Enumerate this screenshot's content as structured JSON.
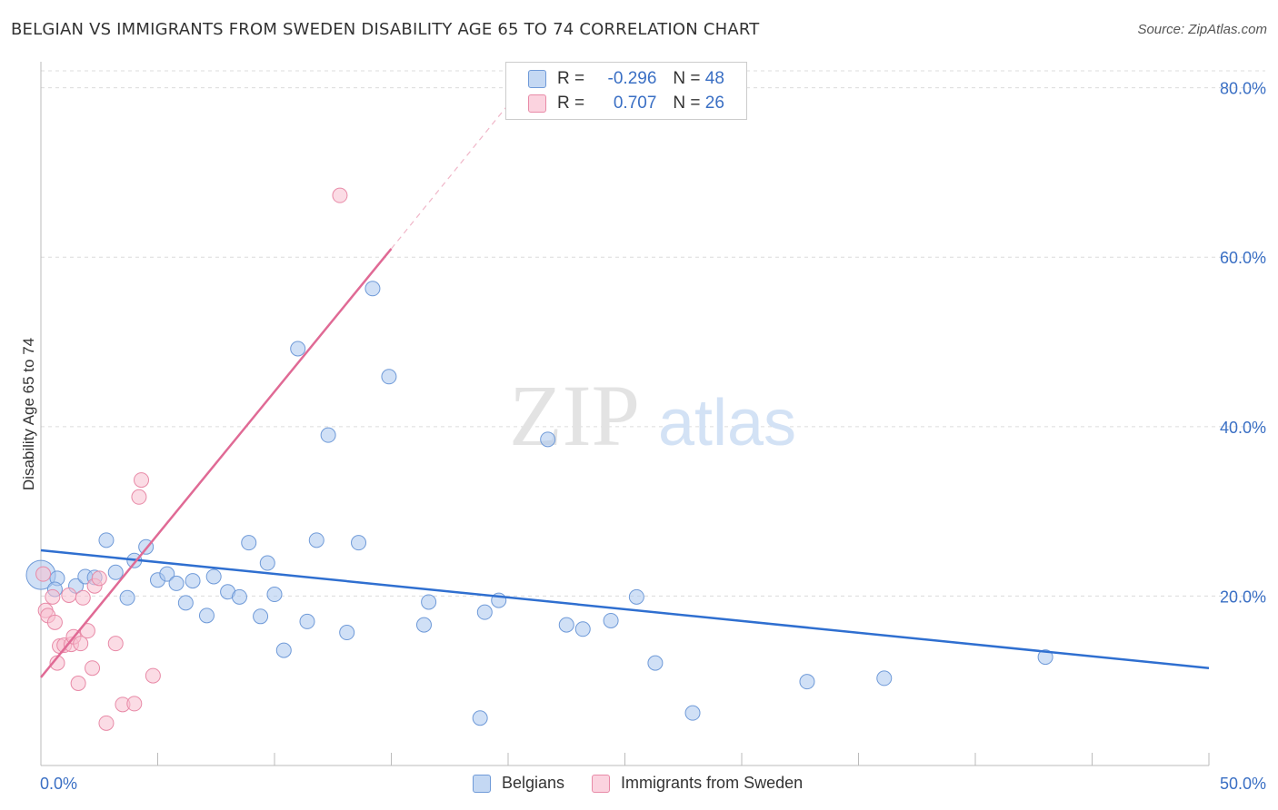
{
  "title": "BELGIAN VS IMMIGRANTS FROM SWEDEN DISABILITY AGE 65 TO 74 CORRELATION CHART",
  "source": "Source: ZipAtlas.com",
  "watermark": {
    "zip": "ZIP",
    "atlas": "atlas"
  },
  "legend": {
    "r_label": "R =",
    "n_label": "N =",
    "rows": [
      {
        "name": "Belgians",
        "r": "-0.296",
        "n": "48",
        "color": "#a9c7ef",
        "border": "#6f9ad8"
      },
      {
        "name": "Immigrants from Sweden",
        "r": "0.707",
        "n": "26",
        "color": "#f7bfd0",
        "border": "#e88aa7"
      }
    ]
  },
  "chart_data": {
    "type": "scatter",
    "title": "BELGIAN VS IMMIGRANTS FROM SWEDEN DISABILITY AGE 65 TO 74 CORRELATION CHART",
    "xlabel": "",
    "ylabel": "Disability Age 65 to 74",
    "xlim": [
      0,
      50
    ],
    "ylim": [
      0,
      82
    ],
    "x_tick_labels": [
      "0.0%",
      "50.0%"
    ],
    "y_ticks": [
      20,
      40,
      60,
      80
    ],
    "y_tick_labels": [
      "20.0%",
      "40.0%",
      "60.0%",
      "80.0%"
    ],
    "series": [
      {
        "name": "Belgians",
        "color": "#a9c7ef",
        "stroke": "#6f9ad8",
        "line_color": "#2f6fd0",
        "trend": {
          "x": [
            0,
            50
          ],
          "y": [
            25.4,
            11.5
          ]
        },
        "points": [
          {
            "x": 0.0,
            "y": 22.5,
            "big": true
          },
          {
            "x": 0.7,
            "y": 22.1
          },
          {
            "x": 0.6,
            "y": 20.8
          },
          {
            "x": 1.5,
            "y": 21.2
          },
          {
            "x": 1.9,
            "y": 22.3
          },
          {
            "x": 2.3,
            "y": 22.2
          },
          {
            "x": 2.8,
            "y": 26.6
          },
          {
            "x": 3.2,
            "y": 22.8
          },
          {
            "x": 3.7,
            "y": 19.8
          },
          {
            "x": 4.0,
            "y": 24.2
          },
          {
            "x": 4.5,
            "y": 25.8
          },
          {
            "x": 5.0,
            "y": 21.9
          },
          {
            "x": 5.4,
            "y": 22.6
          },
          {
            "x": 5.8,
            "y": 21.5
          },
          {
            "x": 6.2,
            "y": 19.2
          },
          {
            "x": 6.5,
            "y": 21.8
          },
          {
            "x": 7.1,
            "y": 17.7
          },
          {
            "x": 7.4,
            "y": 22.3
          },
          {
            "x": 8.0,
            "y": 20.5
          },
          {
            "x": 8.5,
            "y": 19.9
          },
          {
            "x": 8.9,
            "y": 26.3
          },
          {
            "x": 9.4,
            "y": 17.6
          },
          {
            "x": 9.7,
            "y": 23.9
          },
          {
            "x": 10.0,
            "y": 20.2
          },
          {
            "x": 10.4,
            "y": 13.6
          },
          {
            "x": 11.0,
            "y": 49.2
          },
          {
            "x": 11.4,
            "y": 17.0
          },
          {
            "x": 11.8,
            "y": 26.6
          },
          {
            "x": 12.3,
            "y": 39.0
          },
          {
            "x": 13.1,
            "y": 15.7
          },
          {
            "x": 13.6,
            "y": 26.3
          },
          {
            "x": 14.2,
            "y": 56.3
          },
          {
            "x": 14.9,
            "y": 45.9
          },
          {
            "x": 16.4,
            "y": 16.6
          },
          {
            "x": 16.6,
            "y": 19.3
          },
          {
            "x": 18.8,
            "y": 5.6
          },
          {
            "x": 19.0,
            "y": 18.1
          },
          {
            "x": 19.6,
            "y": 19.5
          },
          {
            "x": 21.7,
            "y": 38.5
          },
          {
            "x": 22.5,
            "y": 16.6
          },
          {
            "x": 23.2,
            "y": 16.1
          },
          {
            "x": 24.4,
            "y": 17.1
          },
          {
            "x": 25.5,
            "y": 19.9
          },
          {
            "x": 26.3,
            "y": 12.1
          },
          {
            "x": 27.9,
            "y": 6.2
          },
          {
            "x": 32.8,
            "y": 9.9
          },
          {
            "x": 36.1,
            "y": 10.3
          },
          {
            "x": 43.0,
            "y": 12.8
          }
        ]
      },
      {
        "name": "Immigrants from Sweden",
        "color": "#f7bfd0",
        "stroke": "#e88aa7",
        "line_color": "#e06a95",
        "trend": {
          "x": [
            0,
            15
          ],
          "y": [
            10.4,
            61.0
          ]
        },
        "trend_dashed": {
          "x": [
            15,
            20
          ],
          "y": [
            61.0,
            78.0
          ]
        },
        "points": [
          {
            "x": 0.1,
            "y": 22.6
          },
          {
            "x": 0.2,
            "y": 18.3
          },
          {
            "x": 0.3,
            "y": 17.7
          },
          {
            "x": 0.5,
            "y": 19.9
          },
          {
            "x": 0.6,
            "y": 16.9
          },
          {
            "x": 0.7,
            "y": 12.1
          },
          {
            "x": 0.8,
            "y": 14.1
          },
          {
            "x": 1.0,
            "y": 14.2
          },
          {
            "x": 1.2,
            "y": 20.1
          },
          {
            "x": 1.3,
            "y": 14.3
          },
          {
            "x": 1.4,
            "y": 15.2
          },
          {
            "x": 1.6,
            "y": 9.7
          },
          {
            "x": 1.7,
            "y": 14.4
          },
          {
            "x": 1.8,
            "y": 19.8
          },
          {
            "x": 2.0,
            "y": 15.9
          },
          {
            "x": 2.2,
            "y": 11.5
          },
          {
            "x": 2.3,
            "y": 21.2
          },
          {
            "x": 2.5,
            "y": 22.1
          },
          {
            "x": 2.8,
            "y": 5.0
          },
          {
            "x": 3.2,
            "y": 14.4
          },
          {
            "x": 3.5,
            "y": 7.2
          },
          {
            "x": 4.0,
            "y": 7.3
          },
          {
            "x": 4.2,
            "y": 31.7
          },
          {
            "x": 4.3,
            "y": 33.7
          },
          {
            "x": 4.8,
            "y": 10.6
          },
          {
            "x": 12.8,
            "y": 67.3
          }
        ]
      }
    ]
  }
}
